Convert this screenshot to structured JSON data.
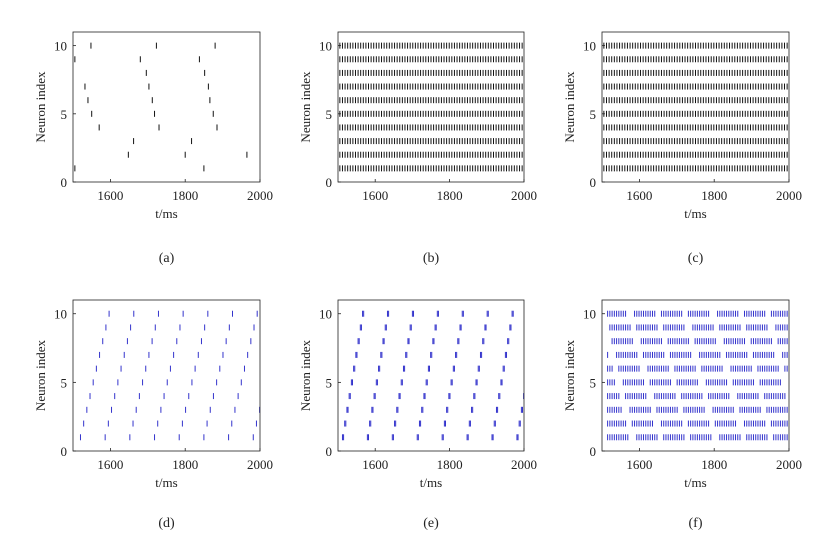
{
  "chart_data": [
    {
      "type": "scatter",
      "panel_label": "(a)",
      "xlabel": "t/ms",
      "ylabel": "Neuron index",
      "xlim": [
        1500,
        2000
      ],
      "ylim": [
        0,
        11
      ],
      "xticks": [
        1600,
        1800,
        2000
      ],
      "yticks": [
        0,
        5,
        10
      ],
      "marker": "vertical-tick",
      "color": "#111111",
      "spike_times": {
        "1": [
          1505,
          1850
        ],
        "2": [
          1648,
          1800,
          1965
        ],
        "3": [
          1662,
          1817
        ],
        "4": [
          1570,
          1730,
          1885
        ],
        "5": [
          1550,
          1718,
          1875
        ],
        "6": [
          1540,
          1712,
          1866
        ],
        "7": [
          1532,
          1703,
          1862
        ],
        "8": [
          1696,
          1852
        ],
        "9": [
          1505,
          1680,
          1838
        ],
        "10": [
          1548,
          1723,
          1880
        ]
      }
    },
    {
      "type": "scatter",
      "panel_label": "(b)",
      "xlabel": "",
      "ylabel": "Neuron index",
      "xlim": [
        1500,
        2000
      ],
      "ylim": [
        0,
        11
      ],
      "xticks": [
        1600,
        1800,
        2000
      ],
      "yticks": [
        0,
        5,
        10
      ],
      "marker": "vertical-tick",
      "color": "#111111",
      "regular_spikes": {
        "neurons": [
          1,
          2,
          3,
          4,
          5,
          6,
          7,
          8,
          9,
          10
        ],
        "start": 1505,
        "period": 7,
        "end": 2000
      }
    },
    {
      "type": "scatter",
      "panel_label": "(c)",
      "xlabel": "t/ms",
      "ylabel": "Neuron index",
      "xlim": [
        1500,
        2000
      ],
      "ylim": [
        0,
        11
      ],
      "xticks": [
        1600,
        1800,
        2000
      ],
      "yticks": [
        0,
        5,
        10
      ],
      "marker": "vertical-tick",
      "color": "#111111",
      "regular_spikes": {
        "neurons": [
          1,
          2,
          3,
          4,
          5,
          6,
          7,
          8,
          9,
          10
        ],
        "start": 1505,
        "period": 7,
        "end": 2000
      }
    },
    {
      "type": "scatter",
      "panel_label": "(d)",
      "xlabel": "t/ms",
      "ylabel": "Neuron index",
      "xlim": [
        1500,
        2000
      ],
      "ylim": [
        0,
        11
      ],
      "xticks": [
        1600,
        1800,
        2000
      ],
      "yticks": [
        0,
        5,
        10
      ],
      "marker": "vertical-tick",
      "color": "#3333cc",
      "wave_spikes": {
        "neurons": [
          1,
          2,
          3,
          4,
          5,
          6,
          7,
          8,
          9,
          10
        ],
        "first_start": 1520,
        "wave_period": 66,
        "neuron_delay": 8.5,
        "end": 2000,
        "burst": 1
      }
    },
    {
      "type": "scatter",
      "panel_label": "(e)",
      "xlabel": "t/ms",
      "ylabel": "Neuron index",
      "xlim": [
        1500,
        2000
      ],
      "ylim": [
        0,
        11
      ],
      "xticks": [
        1600,
        1800,
        2000
      ],
      "yticks": [
        0,
        5,
        10
      ],
      "marker": "vertical-tick-pair",
      "color": "#3333cc",
      "wave_spikes": {
        "neurons": [
          1,
          2,
          3,
          4,
          5,
          6,
          7,
          8,
          9,
          10
        ],
        "first_start": 1512,
        "wave_period": 67,
        "neuron_delay": 6,
        "end": 2000,
        "burst": 2
      }
    },
    {
      "type": "scatter",
      "panel_label": "(f)",
      "xlabel": "t/ms",
      "ylabel": "Neuron index",
      "xlim": [
        1500,
        2000
      ],
      "ylim": [
        0,
        11
      ],
      "xticks": [
        1600,
        1800,
        2000
      ],
      "yticks": [
        0,
        5,
        10
      ],
      "marker": "vertical-tick",
      "color": "#3333cc",
      "burst_spikes": {
        "neurons": [
          1,
          2,
          3,
          4,
          5,
          6,
          7,
          8,
          9,
          10
        ],
        "start": 1515,
        "period": 6,
        "burst_length": 60,
        "gap": 14,
        "end": 2000
      }
    }
  ]
}
